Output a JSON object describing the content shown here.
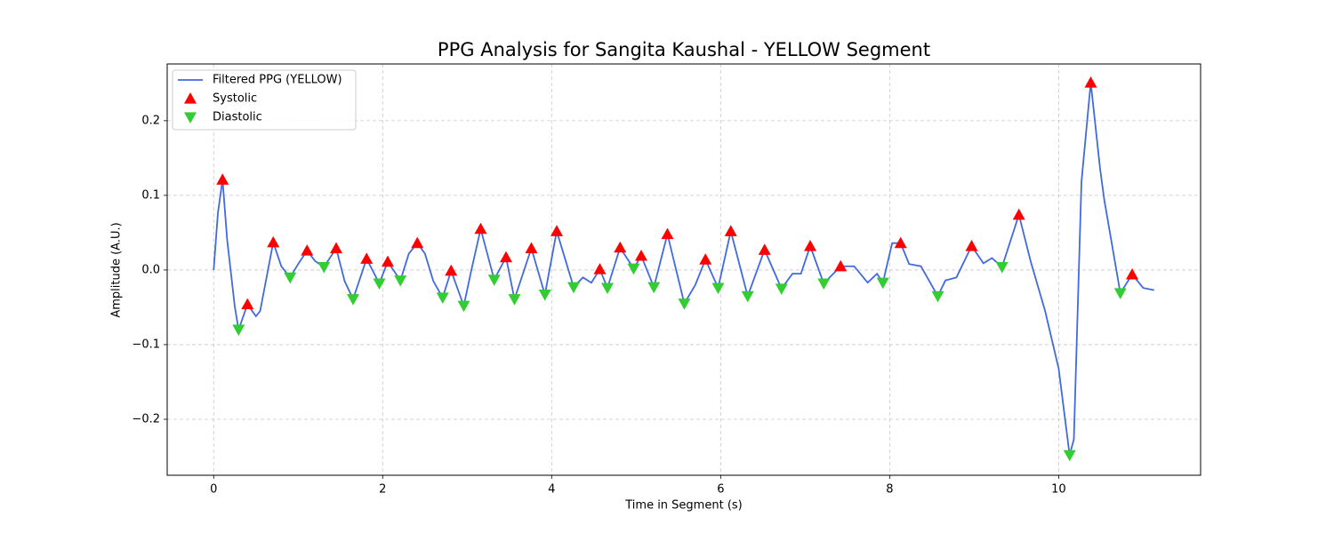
{
  "chart_data": {
    "type": "line",
    "title": "PPG Analysis for Sangita Kaushal - YELLOW Segment",
    "xlabel": "Time in Segment (s)",
    "ylabel": "Amplitude (A.U.)",
    "xlim": [
      -0.55,
      11.68
    ],
    "ylim": [
      -0.275,
      0.276
    ],
    "xticks": [
      0,
      2,
      4,
      6,
      8,
      10
    ],
    "yticks": [
      {
        "value": -0.2,
        "label": "−0.2"
      },
      {
        "value": -0.1,
        "label": "−0.1"
      },
      {
        "value": 0,
        "label": "0.0"
      },
      0.1,
      0.2
    ],
    "grid": true,
    "legend": "upper left",
    "series": [
      {
        "name": "Filtered PPG (YELLOW)",
        "color": "#4169e1",
        "marker": "line",
        "x": [
          0,
          0.05,
          0.105,
          0.16,
          0.25,
          0.295,
          0.4,
          0.5,
          0.55,
          0.705,
          0.8,
          0.905,
          1.0,
          1.105,
          1.2,
          1.305,
          1.45,
          1.55,
          1.65,
          1.81,
          1.96,
          2.06,
          2.21,
          2.31,
          2.41,
          2.5,
          2.6,
          2.71,
          2.81,
          2.96,
          3.05,
          3.16,
          3.32,
          3.46,
          3.56,
          3.76,
          3.92,
          4.06,
          4.26,
          4.37,
          4.47,
          4.57,
          4.66,
          4.81,
          4.97,
          5.06,
          5.21,
          5.37,
          5.57,
          5.7,
          5.82,
          5.97,
          6.12,
          6.32,
          6.52,
          6.72,
          6.85,
          6.95,
          7.06,
          7.22,
          7.42,
          7.58,
          7.74,
          7.85,
          7.92,
          8.03,
          8.13,
          8.23,
          8.37,
          8.57,
          8.66,
          8.79,
          8.97,
          9.11,
          9.21,
          9.33,
          9.53,
          9.67,
          9.84,
          10.0,
          10.13,
          10.18,
          10.27,
          10.38,
          10.49,
          10.54,
          10.73,
          10.87,
          11.0,
          11.13
        ],
        "values": [
          0,
          0.076,
          0.121,
          0.04,
          -0.049,
          -0.08,
          -0.046,
          -0.062,
          -0.055,
          0.037,
          0.005,
          -0.01,
          0.008,
          0.026,
          0.012,
          0.004,
          0.029,
          -0.015,
          -0.039,
          0.015,
          -0.018,
          0.011,
          -0.014,
          0.022,
          0.036,
          0.022,
          -0.015,
          -0.037,
          -0.001,
          -0.048,
          0.0,
          0.055,
          -0.013,
          0.017,
          -0.039,
          0.029,
          -0.033,
          0.052,
          -0.023,
          -0.01,
          -0.017,
          0.001,
          -0.024,
          0.03,
          0.002,
          0.019,
          -0.023,
          0.048,
          -0.045,
          -0.02,
          0.014,
          -0.024,
          0.052,
          -0.035,
          0.027,
          -0.025,
          -0.005,
          -0.005,
          0.032,
          -0.018,
          0.005,
          0.005,
          -0.017,
          -0.005,
          -0.017,
          0.036,
          0.036,
          0.008,
          0.005,
          -0.035,
          -0.014,
          -0.01,
          0.032,
          0.009,
          0.016,
          0.004,
          0.074,
          0.011,
          -0.055,
          -0.132,
          -0.248,
          -0.227,
          0.118,
          0.251,
          0.136,
          0.094,
          -0.031,
          -0.006,
          -0.024,
          -0.027
        ]
      },
      {
        "name": "Systolic",
        "color": "#ff0000",
        "marker": "up",
        "x": [
          0.105,
          0.4,
          0.705,
          1.105,
          1.45,
          1.81,
          2.06,
          2.41,
          2.81,
          3.16,
          3.46,
          3.76,
          4.06,
          4.57,
          4.81,
          5.06,
          5.37,
          5.82,
          6.12,
          6.52,
          7.06,
          7.42,
          8.13,
          8.97,
          9.53,
          10.38,
          10.87
        ],
        "values": [
          0.121,
          -0.046,
          0.037,
          0.026,
          0.029,
          0.015,
          0.011,
          0.036,
          -0.001,
          0.055,
          0.017,
          0.029,
          0.052,
          0.001,
          0.03,
          0.019,
          0.048,
          0.014,
          0.052,
          0.027,
          0.032,
          0.005,
          0.036,
          0.032,
          0.074,
          0.251,
          -0.006
        ]
      },
      {
        "name": "Diastolic",
        "color": "#32cd32",
        "marker": "down",
        "x": [
          0.295,
          0.905,
          1.305,
          1.65,
          1.96,
          2.21,
          2.71,
          2.96,
          3.32,
          3.56,
          3.92,
          4.26,
          4.66,
          4.97,
          5.21,
          5.57,
          5.97,
          6.32,
          6.72,
          7.22,
          7.92,
          8.57,
          9.33,
          10.13,
          10.73
        ],
        "values": [
          -0.08,
          -0.01,
          0.004,
          -0.039,
          -0.018,
          -0.014,
          -0.037,
          -0.048,
          -0.013,
          -0.039,
          -0.033,
          -0.023,
          -0.024,
          0.002,
          -0.023,
          -0.045,
          -0.024,
          -0.035,
          -0.025,
          -0.018,
          -0.017,
          -0.035,
          0.004,
          -0.248,
          -0.031
        ]
      }
    ]
  }
}
